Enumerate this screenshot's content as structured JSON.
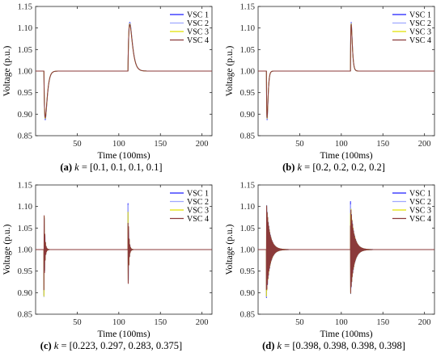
{
  "series_colors": [
    "#1f1fff",
    "#9fa8ff",
    "#e0e000",
    "#8b3a3a"
  ],
  "chart_data": [
    {
      "type": "line",
      "panel_label": "(a)",
      "k_symbol": "k",
      "k_value": " = [0.1, 0.1, 0.1, 0.1]",
      "xlabel": "Time (100ms)",
      "ylabel": "Voltage (p.u.)",
      "xlim": [
        0,
        212
      ],
      "ylim": [
        0.85,
        1.15
      ],
      "xticks": [
        50,
        100,
        150,
        200
      ],
      "yticks": [
        0.85,
        0.9,
        0.95,
        1.0,
        1.05,
        1.1,
        1.15
      ],
      "legend": "top-right",
      "legend_entries": [
        "VSC 1",
        "VSC 2",
        "VSC 3",
        "VSC 4"
      ],
      "events": [
        {
          "t": 10,
          "peak": 0.887,
          "tau": 1.6,
          "freq": 0
        },
        {
          "t": 111,
          "peak": 1.113,
          "tau": 2.2,
          "freq": 0
        }
      ]
    },
    {
      "type": "line",
      "panel_label": "(b)",
      "k_symbol": "k",
      "k_value": " = [0.2, 0.2, 0.2, 0.2]",
      "xlabel": "Time (100ms)",
      "ylabel": "Voltage (p.u.)",
      "xlim": [
        0,
        212
      ],
      "ylim": [
        0.85,
        1.15
      ],
      "xticks": [
        50,
        100,
        150,
        200
      ],
      "yticks": [
        0.85,
        0.9,
        0.95,
        1.0,
        1.05,
        1.1,
        1.15
      ],
      "legend": "top-right",
      "legend_entries": [
        "VSC 1",
        "VSC 2",
        "VSC 3",
        "VSC 4"
      ],
      "events": [
        {
          "t": 10,
          "peak": 0.887,
          "tau": 0.8,
          "freq": 0
        },
        {
          "t": 111,
          "peak": 1.113,
          "tau": 0.9,
          "freq": 0
        }
      ]
    },
    {
      "type": "line",
      "panel_label": "(c)",
      "k_symbol": "k",
      "k_value": " = [0.223, 0.297, 0.283, 0.375]",
      "xlabel": "Time (100ms)",
      "ylabel": "Voltage (p.u.)",
      "xlim": [
        0,
        212
      ],
      "ylim": [
        0.85,
        1.15
      ],
      "xticks": [
        50,
        100,
        150,
        200
      ],
      "yticks": [
        0.85,
        0.9,
        0.95,
        1.0,
        1.05,
        1.1,
        1.15
      ],
      "legend": "top-right",
      "legend_entries": [
        "VSC 1",
        "VSC 2",
        "VSC 3",
        "VSC 4"
      ],
      "events": [
        {
          "t": 10,
          "peak": 0.887,
          "tau": 1.0,
          "freq": 1.3
        },
        {
          "t": 111,
          "peak": 1.113,
          "tau": 1.0,
          "freq": 1.3
        }
      ]
    },
    {
      "type": "line",
      "panel_label": "(d)",
      "k_symbol": "k",
      "k_value": " = [0.398, 0.398, 0.398, 0.398]",
      "xlabel": "Time (100ms)",
      "ylabel": "Voltage (p.u.)",
      "xlim": [
        0,
        212
      ],
      "ylim": [
        0.85,
        1.15
      ],
      "xticks": [
        50,
        100,
        150,
        200
      ],
      "yticks": [
        0.85,
        0.9,
        0.95,
        1.0,
        1.05,
        1.1,
        1.15
      ],
      "legend": "top-right",
      "legend_entries": [
        "VSC 1",
        "VSC 2",
        "VSC 3",
        "VSC 4"
      ],
      "events": [
        {
          "t": 10,
          "peak": 0.887,
          "tau": 4.0,
          "freq": 1.6
        },
        {
          "t": 111,
          "peak": 1.113,
          "tau": 4.0,
          "freq": 1.6
        }
      ]
    }
  ]
}
